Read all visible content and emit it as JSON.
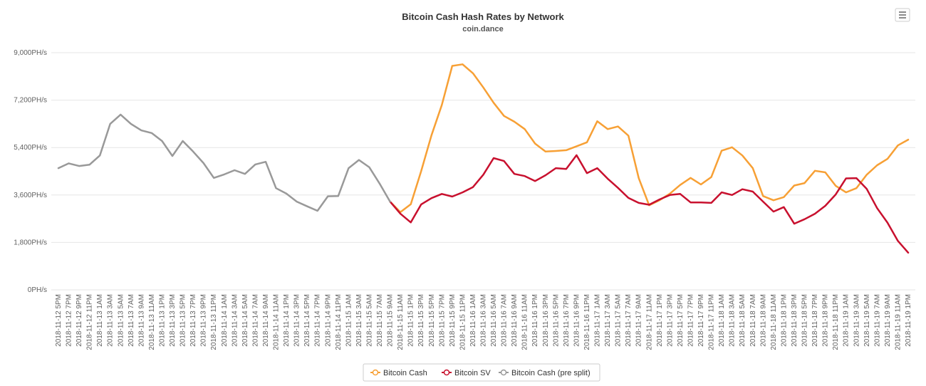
{
  "chart_data": {
    "type": "line",
    "title": "Bitcoin Cash Hash Rates by Network",
    "subtitle": "coin.dance",
    "categories": [
      "2018-11-12 5PM",
      "2018-11-12 7PM",
      "2018-11-12 9PM",
      "2018-11-12 11PM",
      "2018-11-13 1AM",
      "2018-11-13 3AM",
      "2018-11-13 5AM",
      "2018-11-13 7AM",
      "2018-11-13 9AM",
      "2018-11-13 11AM",
      "2018-11-13 1PM",
      "2018-11-13 3PM",
      "2018-11-13 5PM",
      "2018-11-13 7PM",
      "2018-11-13 9PM",
      "2018-11-13 11PM",
      "2018-11-14 1AM",
      "2018-11-14 3AM",
      "2018-11-14 5AM",
      "2018-11-14 7AM",
      "2018-11-14 9AM",
      "2018-11-14 11AM",
      "2018-11-14 1PM",
      "2018-11-14 3PM",
      "2018-11-14 5PM",
      "2018-11-14 7PM",
      "2018-11-14 9PM",
      "2018-11-14 11PM",
      "2018-11-15 1AM",
      "2018-11-15 3AM",
      "2018-11-15 5AM",
      "2018-11-15 7AM",
      "2018-11-15 9AM",
      "2018-11-15 11AM",
      "2018-11-15 1PM",
      "2018-11-15 3PM",
      "2018-11-15 5PM",
      "2018-11-15 7PM",
      "2018-11-15 9PM",
      "2018-11-15 11PM",
      "2018-11-16 1AM",
      "2018-11-16 3AM",
      "2018-11-16 5AM",
      "2018-11-16 7AM",
      "2018-11-16 9AM",
      "2018-11-16 11AM",
      "2018-11-16 1PM",
      "2018-11-16 3PM",
      "2018-11-16 5PM",
      "2018-11-16 7PM",
      "2018-11-16 9PM",
      "2018-11-16 11PM",
      "2018-11-17 1AM",
      "2018-11-17 3AM",
      "2018-11-17 5AM",
      "2018-11-17 7AM",
      "2018-11-17 9AM",
      "2018-11-17 11AM",
      "2018-11-17 1PM",
      "2018-11-17 3PM",
      "2018-11-17 5PM",
      "2018-11-17 7PM",
      "2018-11-17 9PM",
      "2018-11-17 11PM",
      "2018-11-18 1AM",
      "2018-11-18 3AM",
      "2018-11-18 5AM",
      "2018-11-18 7AM",
      "2018-11-18 9AM",
      "2018-11-18 11AM",
      "2018-11-18 1PM",
      "2018-11-18 3PM",
      "2018-11-18 5PM",
      "2018-11-18 7PM",
      "2018-11-18 9PM",
      "2018-11-18 11PM",
      "2018-11-19 1AM",
      "2018-11-19 3AM",
      "2018-11-19 5AM",
      "2018-11-19 7AM",
      "2018-11-19 9AM",
      "2018-11-19 11AM",
      "2018-11-19 1PM"
    ],
    "series": [
      {
        "name": "Bitcoin Cash",
        "color": "#f7a035",
        "values": [
          null,
          null,
          null,
          null,
          null,
          null,
          null,
          null,
          null,
          null,
          null,
          null,
          null,
          null,
          null,
          null,
          null,
          null,
          null,
          null,
          null,
          null,
          null,
          null,
          null,
          null,
          null,
          null,
          null,
          null,
          null,
          null,
          3350,
          2950,
          3250,
          4500,
          5870,
          7020,
          8500,
          8560,
          8220,
          7680,
          7100,
          6600,
          6380,
          6100,
          5550,
          5250,
          5270,
          5300,
          5450,
          5600,
          6400,
          6100,
          6200,
          5850,
          4240,
          3210,
          3400,
          3650,
          3980,
          4250,
          4000,
          4280,
          5280,
          5410,
          5100,
          4620,
          3560,
          3400,
          3520,
          3960,
          4050,
          4520,
          4460,
          3950,
          3700,
          3860,
          4370,
          4730,
          4970,
          5480,
          5700
        ]
      },
      {
        "name": "Bitcoin SV",
        "color": "#c8102e",
        "values": [
          null,
          null,
          null,
          null,
          null,
          null,
          null,
          null,
          null,
          null,
          null,
          null,
          null,
          null,
          null,
          null,
          null,
          null,
          null,
          null,
          null,
          null,
          null,
          null,
          null,
          null,
          null,
          null,
          null,
          null,
          null,
          null,
          3350,
          2890,
          2560,
          3240,
          3480,
          3640,
          3540,
          3700,
          3900,
          4370,
          5000,
          4890,
          4400,
          4320,
          4130,
          4350,
          4620,
          4590,
          5110,
          4430,
          4620,
          4220,
          3870,
          3490,
          3300,
          3230,
          3430,
          3600,
          3640,
          3320,
          3320,
          3300,
          3700,
          3600,
          3820,
          3730,
          3350,
          2970,
          3140,
          2510,
          2680,
          2890,
          3190,
          3620,
          4230,
          4240,
          3830,
          3100,
          2550,
          1860,
          1410
        ]
      },
      {
        "name": "Bitcoin Cash (pre split)",
        "color": "#999999",
        "values": [
          4620,
          4800,
          4700,
          4750,
          5100,
          6300,
          6650,
          6300,
          6050,
          5950,
          5650,
          5080,
          5650,
          5250,
          4810,
          4250,
          4380,
          4540,
          4400,
          4760,
          4860,
          3860,
          3650,
          3350,
          3170,
          3000,
          3550,
          3560,
          4620,
          4930,
          4650,
          4030,
          3350,
          null,
          null,
          null,
          null,
          null,
          null,
          null,
          null,
          null,
          null,
          null,
          null,
          null,
          null,
          null,
          null,
          null,
          null,
          null,
          null,
          null,
          null,
          null,
          null,
          null,
          null,
          null,
          null,
          null,
          null,
          null,
          null,
          null,
          null,
          null,
          null,
          null,
          null,
          null,
          null,
          null,
          null,
          null,
          null,
          null,
          null,
          null,
          null,
          null,
          null
        ]
      }
    ],
    "ylim": [
      0,
      9000
    ],
    "yticks": [
      {
        "value": 0,
        "label": "0PH/s"
      },
      {
        "value": 1800,
        "label": "1,800PH/s"
      },
      {
        "value": 3600,
        "label": "3,600PH/s"
      },
      {
        "value": 5400,
        "label": "5,400PH/s"
      },
      {
        "value": 7200,
        "label": "7,200PH/s"
      },
      {
        "value": 9000,
        "label": "9,000PH/s"
      }
    ],
    "grid": true,
    "legend": "bottom"
  }
}
